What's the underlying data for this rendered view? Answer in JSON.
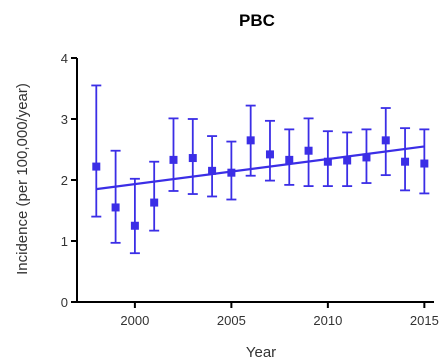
{
  "chart_data": {
    "type": "scatter",
    "title": "PBC",
    "xlabel": "Year",
    "ylabel": "Incidence (per 100,000/year)",
    "xlim": [
      1997,
      2015.5
    ],
    "ylim": [
      0,
      4
    ],
    "x_ticks": [
      2000,
      2005,
      2010,
      2015
    ],
    "x_tick_labels": [
      "2000",
      "2005",
      "2010",
      "2015"
    ],
    "y_ticks": [
      0,
      1,
      2,
      3,
      4
    ],
    "y_tick_labels": [
      "0",
      "1",
      "2",
      "3",
      "4"
    ],
    "grid": false,
    "color": "#3b2ee6",
    "series": [
      {
        "x": [
          1998,
          1999,
          2000,
          2001,
          2002,
          2003,
          2004,
          2005,
          2006,
          2007,
          2008,
          2009,
          2010,
          2011,
          2012,
          2013,
          2014,
          2015
        ],
        "y": [
          2.22,
          1.55,
          1.25,
          1.63,
          2.33,
          2.36,
          2.15,
          2.12,
          2.65,
          2.42,
          2.33,
          2.48,
          2.3,
          2.32,
          2.37,
          2.65,
          2.3,
          2.27
        ],
        "error_low": [
          1.4,
          0.97,
          0.8,
          1.17,
          1.82,
          1.77,
          1.73,
          1.68,
          2.07,
          1.99,
          1.92,
          1.9,
          1.9,
          1.9,
          1.95,
          2.08,
          1.83,
          1.78
        ],
        "error_high": [
          3.55,
          2.48,
          2.02,
          2.3,
          3.01,
          3.0,
          2.72,
          2.63,
          3.22,
          2.97,
          2.83,
          3.01,
          2.8,
          2.78,
          2.83,
          3.18,
          2.85,
          2.83
        ]
      }
    ],
    "trend_line": {
      "x": [
        1998,
        2015
      ],
      "y": [
        1.85,
        2.55
      ]
    }
  }
}
